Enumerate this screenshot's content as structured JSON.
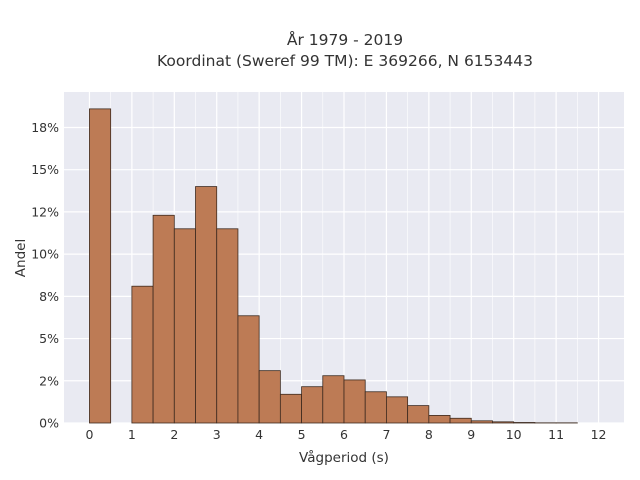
{
  "chart_data": {
    "type": "bar",
    "title_line1": "År 1979 - 2019",
    "title_line2": "Koordinat (Sweref 99 TM): E 369266, N 6153443",
    "xlabel": "Vågperiod (s)",
    "ylabel": "Andel",
    "xlim": [
      -0.6,
      12.6
    ],
    "ylim": [
      0,
      0.196
    ],
    "grid": true,
    "bin_width": 0.5,
    "x_ticks": [
      0,
      1,
      2,
      3,
      4,
      5,
      6,
      7,
      8,
      9,
      10,
      11,
      12
    ],
    "x_tick_labels": [
      "0",
      "1",
      "2",
      "3",
      "4",
      "5",
      "6",
      "7",
      "8",
      "9",
      "10",
      "11",
      "12"
    ],
    "y_ticks": [
      0,
      0.025,
      0.05,
      0.075,
      0.1,
      0.125,
      0.15,
      0.175
    ],
    "y_tick_labels": [
      "0%",
      "2%",
      "5%",
      "8%",
      "10%",
      "12%",
      "15%",
      "18%"
    ],
    "bins": [
      {
        "start": 0.0,
        "end": 0.5,
        "value": 0.186
      },
      {
        "start": 1.0,
        "end": 1.5,
        "value": 0.081
      },
      {
        "start": 1.5,
        "end": 2.0,
        "value": 0.123
      },
      {
        "start": 2.0,
        "end": 2.5,
        "value": 0.115
      },
      {
        "start": 2.5,
        "end": 3.0,
        "value": 0.14
      },
      {
        "start": 3.0,
        "end": 3.5,
        "value": 0.115
      },
      {
        "start": 3.5,
        "end": 4.0,
        "value": 0.0635
      },
      {
        "start": 4.0,
        "end": 4.5,
        "value": 0.031
      },
      {
        "start": 4.5,
        "end": 5.0,
        "value": 0.017
      },
      {
        "start": 5.0,
        "end": 5.5,
        "value": 0.0215
      },
      {
        "start": 5.5,
        "end": 6.0,
        "value": 0.028
      },
      {
        "start": 6.0,
        "end": 6.5,
        "value": 0.0255
      },
      {
        "start": 6.5,
        "end": 7.0,
        "value": 0.0185
      },
      {
        "start": 7.0,
        "end": 7.5,
        "value": 0.0155
      },
      {
        "start": 7.5,
        "end": 8.0,
        "value": 0.0103
      },
      {
        "start": 8.0,
        "end": 8.5,
        "value": 0.0045
      },
      {
        "start": 8.5,
        "end": 9.0,
        "value": 0.0028
      },
      {
        "start": 9.0,
        "end": 9.5,
        "value": 0.0013
      },
      {
        "start": 9.5,
        "end": 10.0,
        "value": 0.0007
      },
      {
        "start": 10.0,
        "end": 10.5,
        "value": 0.0003
      },
      {
        "start": 10.5,
        "end": 11.0,
        "value": 0.0001
      },
      {
        "start": 11.0,
        "end": 11.5,
        "value": 0.0001
      }
    ],
    "colors": {
      "bar_fill": "#bd7b55",
      "bar_edge": "#3d2a1f",
      "plot_bg": "#e9eaf2",
      "grid": "#ffffff"
    }
  }
}
